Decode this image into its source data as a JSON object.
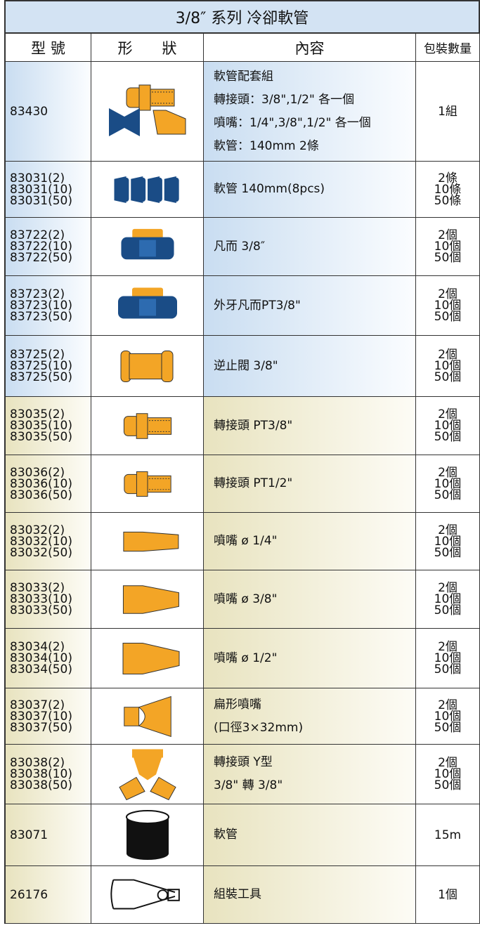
{
  "table": {
    "title": "3/8″ 系列 冷卻軟管",
    "header": [
      "型 號",
      "形　　狀",
      "內容",
      "包裝數量"
    ],
    "rows": [
      {
        "model": [
          "83430"
        ],
        "content": [
          "軟管配套組",
          "轉接頭：3/8\",1/2\"  各一個",
          "噴嘴：1/4\",3/8\",1/2\" 各一個",
          "軟管：140mm  2條"
        ],
        "quantity": [
          "1組"
        ]
      },
      {
        "model": [
          "83031(2)",
          "83031(10)",
          "83031(50)"
        ],
        "content": [
          "軟管  140mm(8pcs)"
        ],
        "quantity": [
          "2條",
          "10條",
          "50條"
        ]
      },
      {
        "model": [
          "83722(2)",
          "83722(10)",
          "83722(50)"
        ],
        "content": [
          "凡而 3/8″"
        ],
        "quantity": [
          "2個",
          "10個",
          "50個"
        ]
      },
      {
        "model": [
          "83723(2)",
          "83723(10)",
          "83723(50)"
        ],
        "content": [
          "外牙凡而PT3/8\""
        ],
        "quantity": [
          "2個",
          "10個",
          "50個"
        ]
      },
      {
        "model": [
          "83725(2)",
          "83725(10)",
          "83725(50)"
        ],
        "content": [
          "逆止閥 3/8\""
        ],
        "quantity": [
          "2個",
          "10個",
          "50個"
        ]
      },
      {
        "model": [
          "83035(2)",
          "83035(10)",
          "83035(50)"
        ],
        "content": [
          "轉接頭  PT3/8\""
        ],
        "quantity": [
          "2個",
          "10個",
          "50個"
        ]
      },
      {
        "model": [
          "83036(2)",
          "83036(10)",
          "83036(50)"
        ],
        "content": [
          "轉接頭  PT1/2\""
        ],
        "quantity": [
          "2個",
          "10個",
          "50個"
        ]
      },
      {
        "model": [
          "83032(2)",
          "83032(10)",
          "83032(50)"
        ],
        "content": [
          "噴嘴  ø 1/4\""
        ],
        "quantity": [
          "2個",
          "10個",
          "50個"
        ]
      },
      {
        "model": [
          "83033(2)",
          "83033(10)",
          "83033(50)"
        ],
        "content": [
          "噴嘴  ø 3/8\""
        ],
        "quantity": [
          "2個",
          "10個",
          "50個"
        ]
      },
      {
        "model": [
          "83034(2)",
          "83034(10)",
          "83034(50)"
        ],
        "content": [
          "噴嘴  ø 1/2\""
        ],
        "quantity": [
          "2個",
          "10個",
          "50個"
        ]
      },
      {
        "model": [
          "83037(2)",
          "83037(10)",
          "83037(50)"
        ],
        "content": [
          "扁形噴嘴",
          "(口徑3×32mm)"
        ],
        "quantity": [
          "2個",
          "10個",
          "50個"
        ]
      },
      {
        "model": [
          "83038(2)",
          "83038(10)",
          "83038(50)"
        ],
        "content": [
          "轉接頭 Y型",
          "3/8\"  轉 3/8\""
        ],
        "quantity": [
          "2個",
          "10個",
          "50個"
        ]
      },
      {
        "model": [
          "83071"
        ],
        "content": [
          "軟管"
        ],
        "quantity": [
          "15m"
        ]
      },
      {
        "model": [
          "26176"
        ],
        "content": [
          "組裝工具"
        ],
        "quantity": [
          "1個"
        ]
      }
    ]
  }
}
